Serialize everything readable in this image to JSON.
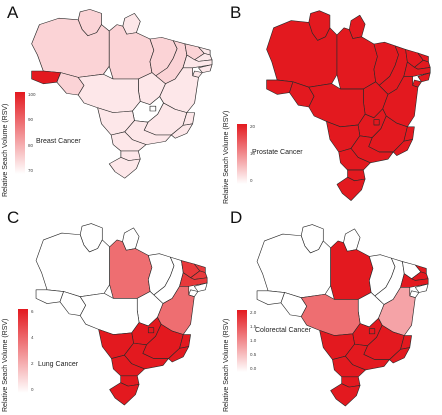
{
  "colors": {
    "p0": "#ffffff",
    "p1": "#fde7e9",
    "p2": "#fbd3d6",
    "p3": "#f5a3a7",
    "p4": "#ee6e71",
    "p5": "#e8393b",
    "p6": "#e3191f",
    "legend_top": "#e3191f",
    "legend_bottom": "#ffffff"
  },
  "y_label": "Relative Seach Volume (RSV)",
  "panels": [
    {
      "label": "A",
      "title": "Breast Cancer",
      "ticks": [
        "100",
        "90",
        "80",
        "70"
      ],
      "state_levels": {
        "AC": 6,
        "AM": 2,
        "RR": 2,
        "PA": 2,
        "AP": 1,
        "RO": 2,
        "MT": 1,
        "TO": 1,
        "MA": 2,
        "PI": 2,
        "CE": 2,
        "RN": 1,
        "PB": 1,
        "PE": 1,
        "AL": 1,
        "SE": 1,
        "BA": 1,
        "GO": 0,
        "DF": 0,
        "MS": 1,
        "MG": 1,
        "ES": 1,
        "RJ": 1,
        "SP": 1,
        "PR": 1,
        "SC": 1,
        "RS": 1
      }
    },
    {
      "label": "B",
      "title": "Prostate Cancer",
      "ticks": [
        "20",
        "10",
        "0"
      ],
      "state_levels": {
        "AC": 6,
        "AM": 6,
        "RR": 6,
        "PA": 6,
        "AP": 6,
        "RO": 6,
        "MT": 6,
        "TO": 6,
        "MA": 6,
        "PI": 6,
        "CE": 6,
        "RN": 6,
        "PB": 6,
        "PE": 6,
        "AL": 6,
        "SE": 6,
        "BA": 6,
        "GO": 6,
        "DF": 6,
        "MS": 6,
        "MG": 6,
        "ES": 6,
        "RJ": 6,
        "SP": 6,
        "PR": 6,
        "SC": 6,
        "RS": 6
      }
    },
    {
      "label": "C",
      "title": "Lung Cancer",
      "ticks": [
        "6",
        "4",
        "2",
        "0"
      ],
      "state_levels": {
        "AC": 0,
        "AM": 0,
        "RR": 0,
        "PA": 4,
        "AP": 0,
        "RO": 0,
        "MT": 0,
        "TO": 0,
        "MA": 0,
        "PI": 0,
        "CE": 5,
        "RN": 5,
        "PB": 5,
        "PE": 5,
        "AL": 0,
        "SE": 0,
        "BA": 4,
        "GO": 6,
        "DF": 6,
        "MS": 6,
        "MG": 6,
        "ES": 6,
        "RJ": 6,
        "SP": 6,
        "PR": 6,
        "SC": 6,
        "RS": 6
      }
    },
    {
      "label": "D",
      "title": "Colorectal Cancer",
      "ticks": [
        "2.0",
        "1.5",
        "1.0",
        "0.5",
        "0.0"
      ],
      "state_levels": {
        "AC": 0,
        "AM": 0,
        "RR": 0,
        "PA": 6,
        "AP": 0,
        "RO": 0,
        "MT": 4,
        "TO": 0,
        "MA": 0,
        "PI": 0,
        "CE": 0,
        "RN": 6,
        "PB": 6,
        "PE": 6,
        "AL": 0,
        "SE": 0,
        "BA": 3,
        "GO": 6,
        "DF": 6,
        "MS": 6,
        "MG": 6,
        "ES": 6,
        "RJ": 6,
        "SP": 6,
        "PR": 6,
        "SC": 6,
        "RS": 6
      }
    }
  ]
}
